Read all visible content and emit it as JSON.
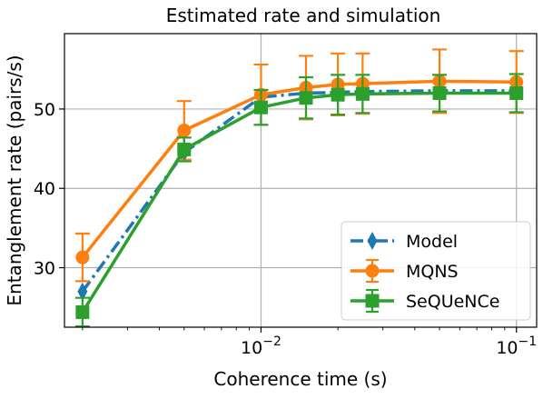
{
  "chart_data": {
    "type": "line",
    "title": "Estimated rate and simulation",
    "xlabel": "Coherence time (s)",
    "ylabel": "Entanglement rate (pairs/s)",
    "xscale": "log",
    "xlim": [
      0.0017,
      0.12
    ],
    "ylim": [
      22.5,
      59.5
    ],
    "grid": true,
    "legend_position": "lower right",
    "x_ticks": [
      {
        "value": 0.01,
        "base": "10",
        "exp": "−2"
      },
      {
        "value": 0.1,
        "base": "10",
        "exp": "−1"
      }
    ],
    "y_ticks": [
      {
        "value": 30,
        "label": "30"
      },
      {
        "value": 40,
        "label": "40"
      },
      {
        "value": 50,
        "label": "50"
      }
    ],
    "x": [
      0.002,
      0.005,
      0.01,
      0.015,
      0.02,
      0.025,
      0.05,
      0.1
    ],
    "series": [
      {
        "name": "Model",
        "color": "#1f77b4",
        "marker": "thin_diamond",
        "linestyle": "dashdot",
        "values": [
          27.0,
          44.5,
          51.5,
          52.0,
          52.1,
          52.2,
          52.3,
          52.3
        ]
      },
      {
        "name": "MQNS",
        "color": "#ff7f0e",
        "marker": "circle",
        "linestyle": "solid",
        "values": [
          31.3,
          47.3,
          51.8,
          52.7,
          53.1,
          53.2,
          53.5,
          53.4
        ],
        "errors": [
          3.0,
          3.7,
          3.8,
          4.0,
          3.9,
          3.8,
          4.0,
          3.9
        ]
      },
      {
        "name": "SeQUeNCe",
        "color": "#2ca02c",
        "marker": "square",
        "linestyle": "solid",
        "values": [
          24.4,
          44.9,
          50.2,
          51.4,
          51.8,
          51.9,
          52.0,
          52.0
        ],
        "errors": [
          1.8,
          1.5,
          2.2,
          2.6,
          2.5,
          2.4,
          2.3,
          2.4
        ]
      }
    ]
  }
}
